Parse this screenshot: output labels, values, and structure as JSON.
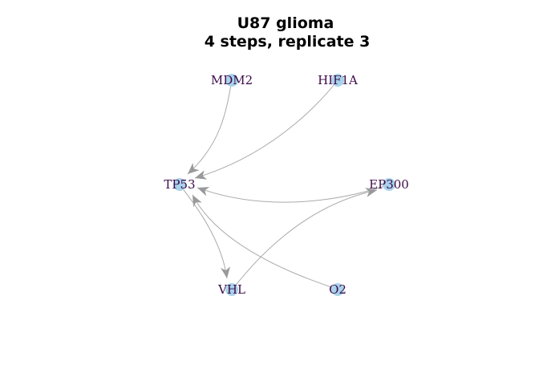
{
  "title": {
    "line1": "U87 glioma",
    "line2": "4 steps, replicate 3"
  },
  "colors": {
    "node_fill": "#a8d3ea",
    "label_text": "#3d0a4a",
    "edge_stroke": "#aaaaaa",
    "arrowhead": "#999999"
  },
  "nodes": [
    {
      "id": "MDM2",
      "label": "MDM2"
    },
    {
      "id": "HIF1A",
      "label": "HIF1A"
    },
    {
      "id": "TP53",
      "label": "TP53"
    },
    {
      "id": "EP300",
      "label": "EP300"
    },
    {
      "id": "VHL",
      "label": "VHL"
    },
    {
      "id": "O2",
      "label": "O2"
    }
  ],
  "edges": [
    {
      "source": "MDM2",
      "target": "TP53"
    },
    {
      "source": "HIF1A",
      "target": "TP53"
    },
    {
      "source": "EP300",
      "target": "TP53"
    },
    {
      "source": "O2",
      "target": "TP53"
    },
    {
      "source": "TP53",
      "target": "VHL"
    },
    {
      "source": "VHL",
      "target": "EP300"
    }
  ]
}
